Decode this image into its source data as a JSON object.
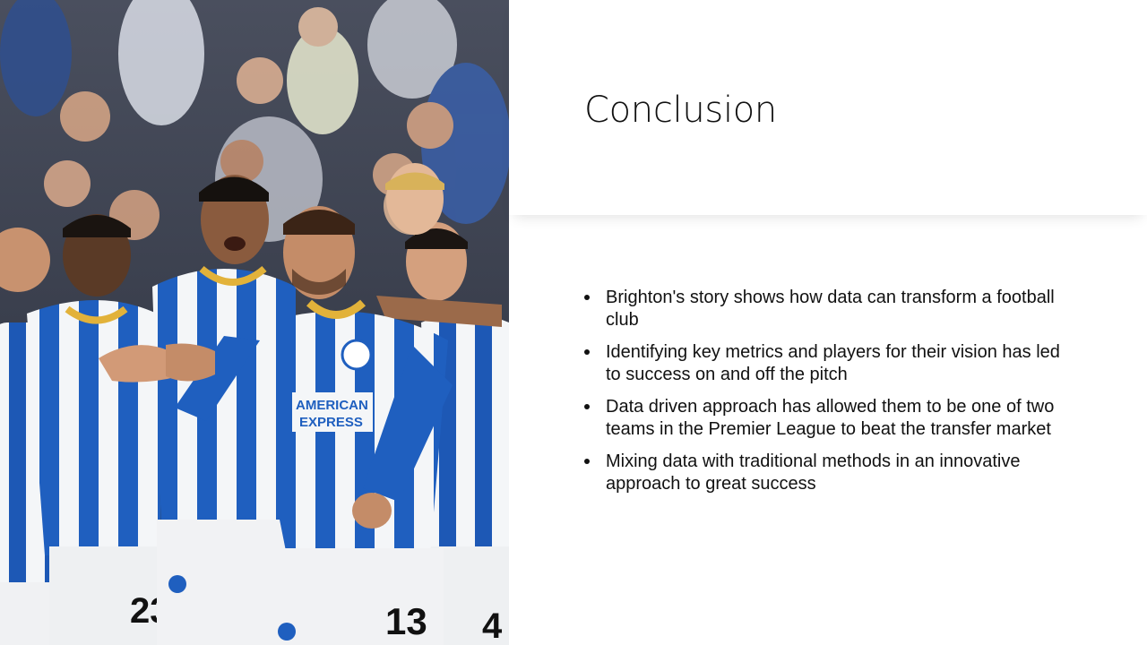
{
  "slide": {
    "title": "Conclusion",
    "bullets": [
      "Brighton's story shows how data can transform a football club",
      "Identifying key metrics and players for their vision has led to success on and off the pitch",
      "Data driven approach has allowed them to be one of two teams in the Premier League to beat the transfer market",
      "Mixing data with traditional methods in an innovative approach to great success"
    ]
  },
  "photo": {
    "sponsor_line1": "AMERICAN",
    "sponsor_line2": "EXPRESS",
    "number_left": "23",
    "number_center": "13",
    "number_right": "4",
    "kit_colors": {
      "blue": "#1f5fbf",
      "white": "#f4f6f8",
      "gold": "#e2b23a"
    }
  }
}
